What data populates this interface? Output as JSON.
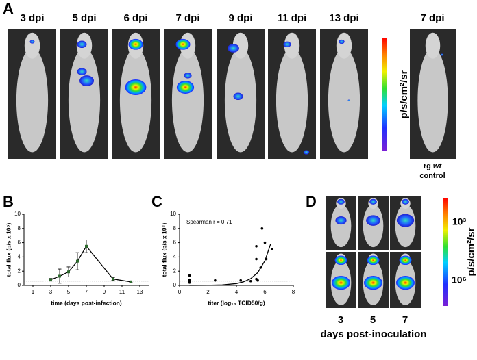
{
  "panel_labels": [
    "A",
    "B",
    "C",
    "D"
  ],
  "panel_a": {
    "timepoints": [
      "3 dpi",
      "5 dpi",
      "6 dpi",
      "7 dpi",
      "9 dpi",
      "11 dpi",
      "13 dpi"
    ],
    "control_timepoint": "7 dpi",
    "colorbar_label": "p/s/cm²/sr",
    "control_label": {
      "prefix": "rg",
      "italic": "wt",
      "suffix": "control"
    }
  },
  "chart_data": [
    {
      "type": "line",
      "xlabel": "time (days post-infection)",
      "ylabel": "total flux (p/s x 10⁵)",
      "x": [
        3,
        4,
        5,
        6,
        7,
        10,
        12
      ],
      "series": [
        {
          "color": "#2e6b2e",
          "values": [
            0.8,
            1.3,
            1.9,
            3.4,
            5.5,
            0.9,
            0.5
          ],
          "errors": [
            0.2,
            1.0,
            0.7,
            1.2,
            0.9,
            0.2,
            0.1
          ]
        }
      ],
      "xlim": [
        0,
        14
      ],
      "xticks": [
        1,
        3,
        5,
        7,
        9,
        11,
        13
      ],
      "ylim": [
        0,
        10
      ],
      "yticks": [
        0,
        2,
        4,
        6,
        8,
        10
      ],
      "reference_line": 0.6
    },
    {
      "type": "scatter",
      "annotation": "Spearman r = 0.71",
      "xlabel": "titer (log₁₀ TCID50/g)",
      "ylabel": "total flux (p/s x 10⁵)",
      "x": [
        0.7,
        0.7,
        0.7,
        0.7,
        2.5,
        4.3,
        5.0,
        5.4,
        5.4,
        5.4,
        5.5,
        5.7,
        5.8,
        6.0,
        6.1,
        6.5
      ],
      "values": [
        1.4,
        0.8,
        0.6,
        0.4,
        0.7,
        0.7,
        0.6,
        5.5,
        3.7,
        0.9,
        0.7,
        2.5,
        8.0,
        6.0,
        3.7,
        5.1
      ],
      "color": "#000000",
      "fit": {
        "x": [
          0.7,
          2,
          3,
          4,
          4.5,
          5,
          5.5,
          6,
          6.4
        ],
        "values": [
          0.004,
          0.02,
          0.07,
          0.26,
          0.5,
          0.95,
          1.8,
          3.45,
          5.8
        ]
      },
      "xlim": [
        0,
        8
      ],
      "xticks": [
        0,
        2,
        4,
        6,
        8
      ],
      "ylim": [
        0,
        10
      ],
      "yticks": [
        0,
        2,
        4,
        6,
        8,
        10
      ],
      "reference_line": 0.6
    }
  ],
  "panel_d": {
    "colorbar_ticks": [
      "10³",
      "10⁶"
    ],
    "colorbar_label": "p/s/cm²/sr",
    "columns": [
      "3",
      "5",
      "7"
    ],
    "xlabel": "days post-inoculation"
  }
}
